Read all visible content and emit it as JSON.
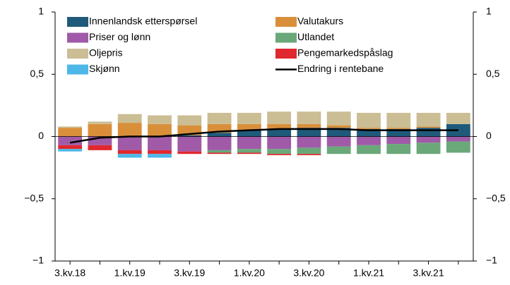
{
  "chart_data": {
    "type": "stacked_bar_line",
    "categories": [
      "3.kv.18",
      null,
      "1.kv.19",
      null,
      "3.kv.19",
      null,
      "1.kv.20",
      null,
      "3.kv.20",
      null,
      "1.kv.21",
      null,
      "3.kv.21",
      null
    ],
    "series": [
      {
        "name": "Innenlandsk etterspørsel",
        "color": "#1f5a7a",
        "values": [
          0,
          0,
          0,
          0,
          0.01,
          0.03,
          0.05,
          0.06,
          0.07,
          0.07,
          0.06,
          0.06,
          0.07,
          0.1
        ]
      },
      {
        "name": "Valutakurs",
        "color": "#d98f3a",
        "values": [
          0.07,
          0.1,
          0.11,
          0.1,
          0.08,
          0.07,
          0.05,
          0.04,
          0.03,
          0.02,
          0.01,
          0.01,
          0.01,
          0
        ]
      },
      {
        "name": "Priser og lønn",
        "color": "#a05aa8",
        "values": [
          -0.07,
          -0.07,
          -0.11,
          -0.11,
          -0.12,
          -0.11,
          -0.1,
          -0.1,
          -0.09,
          -0.08,
          -0.07,
          -0.06,
          -0.05,
          -0.04
        ]
      },
      {
        "name": "Utlandet",
        "color": "#6aa87a",
        "values": [
          0,
          0,
          0,
          0,
          0,
          -0.02,
          -0.03,
          -0.04,
          -0.05,
          -0.06,
          -0.07,
          -0.08,
          -0.09,
          -0.09
        ]
      },
      {
        "name": "Oljepris",
        "color": "#cbbd94",
        "values": [
          0.01,
          0.02,
          0.07,
          0.07,
          0.08,
          0.09,
          0.09,
          0.1,
          0.1,
          0.11,
          0.12,
          0.12,
          0.11,
          0.09
        ]
      },
      {
        "name": "Pengemarkedspåslag",
        "color": "#e0282e",
        "values": [
          -0.03,
          -0.04,
          -0.03,
          -0.03,
          -0.02,
          -0.01,
          -0.01,
          -0.01,
          -0.01,
          0,
          0,
          0,
          0,
          0
        ]
      },
      {
        "name": "Skjønn",
        "color": "#4db8e8",
        "values": [
          -0.02,
          0,
          -0.03,
          -0.03,
          0,
          0,
          0,
          0,
          0,
          0,
          0,
          0,
          0,
          0
        ]
      },
      {
        "name": "Endring i rentebane",
        "color": "#000000",
        "kind": "line",
        "values": [
          -0.05,
          -0.01,
          0,
          0,
          0.02,
          0.04,
          0.05,
          0.06,
          0.06,
          0.06,
          0.05,
          0.05,
          0.05,
          0.05
        ]
      }
    ],
    "ylim": [
      -1,
      1
    ],
    "yticks": [
      {
        "value": -1,
        "label": "−1"
      },
      {
        "value": -0.5,
        "label": "−0,5"
      },
      0,
      {
        "value": 0.5,
        "label": "0,5"
      },
      1
    ]
  }
}
